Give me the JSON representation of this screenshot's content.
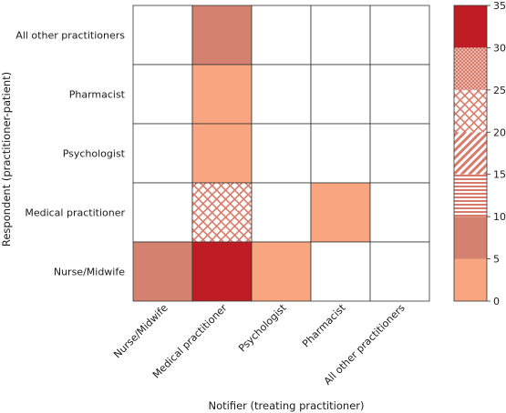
{
  "chart_data": {
    "type": "heatmap",
    "title": "",
    "xlabel": "Notifier (treating practitioner)",
    "ylabel": "Respondent (practitioner-patient)",
    "x_categories": [
      "Nurse/Midwife",
      "Medical practitioner",
      "Psychologist",
      "Pharmacist",
      "All other practitioners"
    ],
    "y_categories": [
      "All other practitioners",
      "Pharmacist",
      "Psychologist",
      "Medical practitioner",
      "Nurse/Midwife"
    ],
    "values": [
      [
        0,
        10,
        0,
        0,
        0
      ],
      [
        0,
        5,
        0,
        0,
        0
      ],
      [
        0,
        5,
        0,
        0,
        0
      ],
      [
        0,
        25,
        0,
        5,
        0
      ],
      [
        10,
        35,
        5,
        0,
        0
      ]
    ],
    "colorbar": {
      "ticks": [
        0,
        5,
        10,
        15,
        20,
        25,
        30,
        35
      ],
      "range": [
        0,
        35
      ],
      "bins": [
        {
          "from": 0,
          "to": 5,
          "color": "#f9a57f",
          "pattern": "none"
        },
        {
          "from": 5,
          "to": 10,
          "color": "#d4826f",
          "pattern": "none"
        },
        {
          "from": 10,
          "to": 15,
          "color": "#d87a6a",
          "pattern": "horizontal"
        },
        {
          "from": 15,
          "to": 20,
          "color": "#d87a6a",
          "pattern": "diagonal"
        },
        {
          "from": 20,
          "to": 25,
          "color": "#d87a6a",
          "pattern": "crosshatch"
        },
        {
          "from": 25,
          "to": 30,
          "color": "#d87a6a",
          "pattern": "dots"
        },
        {
          "from": 30,
          "to": 35,
          "color": "#c01c24",
          "pattern": "none"
        }
      ]
    },
    "grid": true,
    "legend": "right"
  }
}
